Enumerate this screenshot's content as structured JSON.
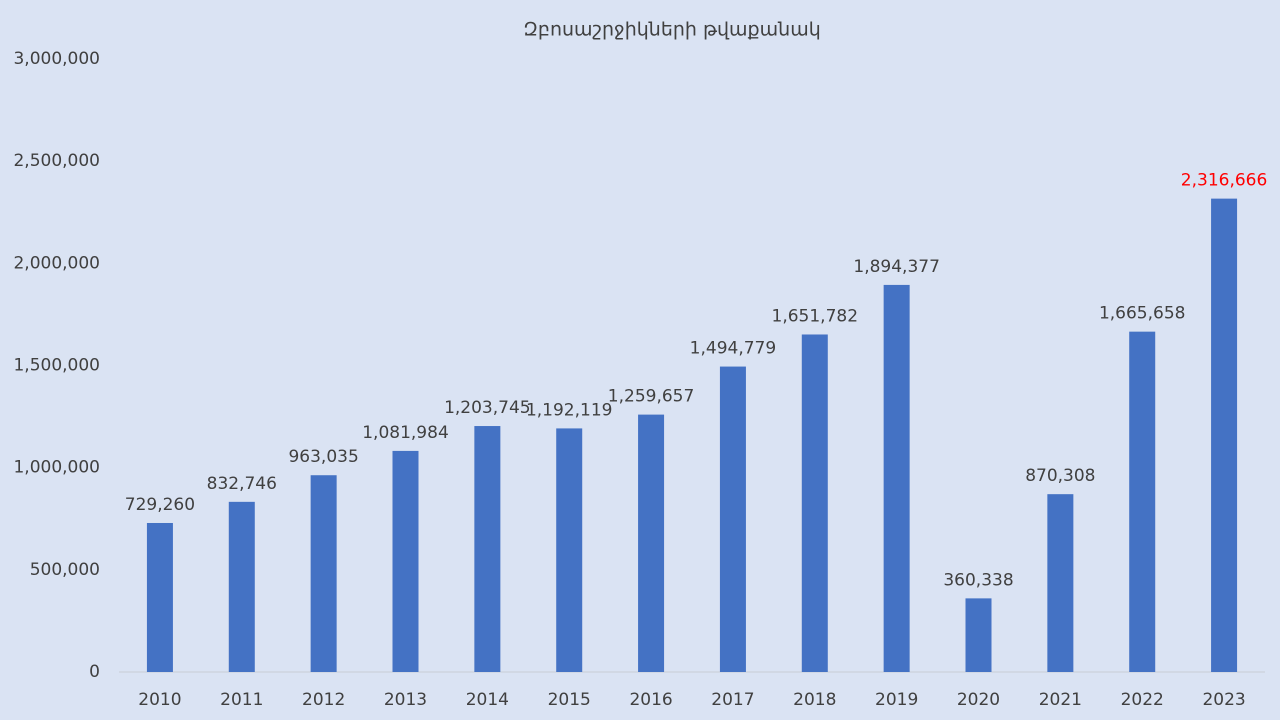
{
  "chart_data": {
    "type": "bar",
    "title": "Զբոսաշրջիկների թվաքանակ",
    "categories": [
      "2010",
      "2011",
      "2012",
      "2013",
      "2014",
      "2015",
      "2016",
      "2017",
      "2018",
      "2019",
      "2020",
      "2021",
      "2022",
      "2023"
    ],
    "values": [
      729260,
      832746,
      963035,
      1081984,
      1203745,
      1192119,
      1259657,
      1494779,
      1651782,
      1894377,
      360338,
      870308,
      1665658,
      2316666
    ],
    "value_labels": [
      "729,260",
      "832,746",
      "963,035",
      "1,081,984",
      "1,203,745",
      "1,192,119",
      "1,259,657",
      "1,494,779",
      "1,651,782",
      "1,894,377",
      "360,338",
      "870,308",
      "1,665,658",
      "2,316,666"
    ],
    "value_label_colors": [
      "#404040",
      "#404040",
      "#404040",
      "#404040",
      "#404040",
      "#404040",
      "#404040",
      "#404040",
      "#404040",
      "#404040",
      "#404040",
      "#404040",
      "#404040",
      "#ff0000"
    ],
    "color": "#4472c4",
    "ylim": [
      0,
      3000000
    ],
    "yticks": [
      0,
      {
        "value": 500000,
        "label": "500,000"
      },
      {
        "value": 1000000,
        "label": "1,000,000"
      },
      {
        "value": 1500000,
        "label": "1,500,000"
      },
      {
        "value": 2000000,
        "label": "2,000,000"
      },
      {
        "value": 2500000,
        "label": "2,500,000"
      },
      {
        "value": 3000000,
        "label": "3,000,000"
      }
    ],
    "grid": false
  }
}
